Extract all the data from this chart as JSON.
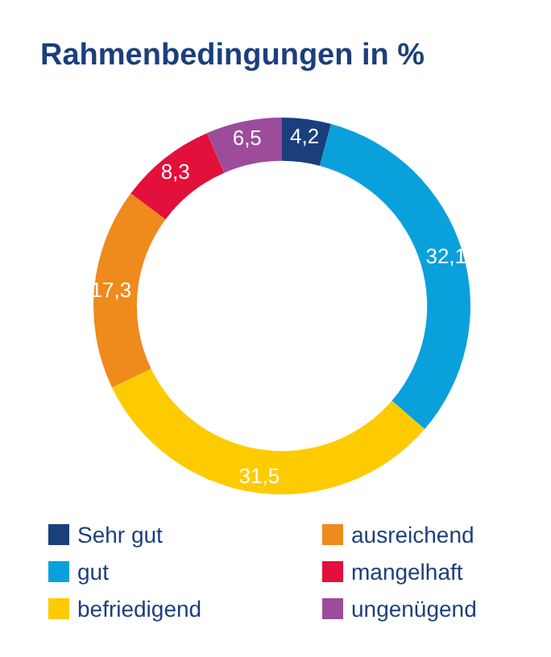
{
  "chart_data": {
    "type": "donut",
    "title": "Rahmenbedingungen in %",
    "categories": [
      "Sehr gut",
      "gut",
      "befriedigend",
      "ausreichend",
      "mangelhaft",
      "ungenügend"
    ],
    "values": [
      4.2,
      32.1,
      31.5,
      17.3,
      8.3,
      6.5
    ],
    "value_labels": [
      "4,2",
      "32,1",
      "31,5",
      "17,3",
      "8,3",
      "6,5"
    ],
    "colors": [
      "#1b3f7c",
      "#0aa0dc",
      "#fecb00",
      "#ef8a1c",
      "#e2103a",
      "#9c4c9b"
    ],
    "legend": "bottom"
  }
}
